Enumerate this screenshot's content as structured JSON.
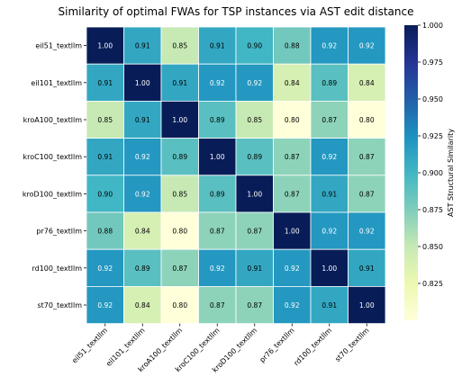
{
  "chart_data": {
    "type": "heatmap",
    "title": "Similarity of optimal FWAs for TSP instances via AST edit distance",
    "rows": [
      "eil51_textllm",
      "eil101_textllm",
      "kroA100_textllm",
      "kroC100_textllm",
      "kroD100_textllm",
      "pr76_textllm",
      "rd100_textllm",
      "st70_textllm"
    ],
    "columns": [
      "eil51_textllm",
      "eil101_textllm",
      "kroA100_textllm",
      "kroC100_textllm",
      "kroD100_textllm",
      "pr76_textllm",
      "rd100_textllm",
      "st70_textllm"
    ],
    "values": [
      [
        1.0,
        0.91,
        0.85,
        0.91,
        0.9,
        0.88,
        0.92,
        0.92
      ],
      [
        0.91,
        1.0,
        0.91,
        0.92,
        0.92,
        0.84,
        0.89,
        0.84
      ],
      [
        0.85,
        0.91,
        1.0,
        0.89,
        0.85,
        0.8,
        0.87,
        0.8
      ],
      [
        0.91,
        0.92,
        0.89,
        1.0,
        0.89,
        0.87,
        0.92,
        0.87
      ],
      [
        0.9,
        0.92,
        0.85,
        0.89,
        1.0,
        0.87,
        0.91,
        0.87
      ],
      [
        0.88,
        0.84,
        0.8,
        0.87,
        0.87,
        1.0,
        0.92,
        0.92
      ],
      [
        0.92,
        0.89,
        0.87,
        0.92,
        0.91,
        0.92,
        1.0,
        0.91
      ],
      [
        0.92,
        0.84,
        0.8,
        0.87,
        0.87,
        0.92,
        0.91,
        1.0
      ]
    ],
    "colorbar": {
      "label": "AST Structural Similarity",
      "vmin": 0.8,
      "vmax": 1.0,
      "ticks": [
        "0.825",
        "0.850",
        "0.875",
        "0.900",
        "0.925",
        "0.950",
        "0.975",
        "1.000"
      ],
      "colormap": "YlGnBu",
      "colors": [
        "#ffffd9",
        "#edf8b1",
        "#c7e9b4",
        "#7fcdbb",
        "#41b6c4",
        "#1d91c0",
        "#225ea8",
        "#253494",
        "#081d58"
      ]
    }
  }
}
